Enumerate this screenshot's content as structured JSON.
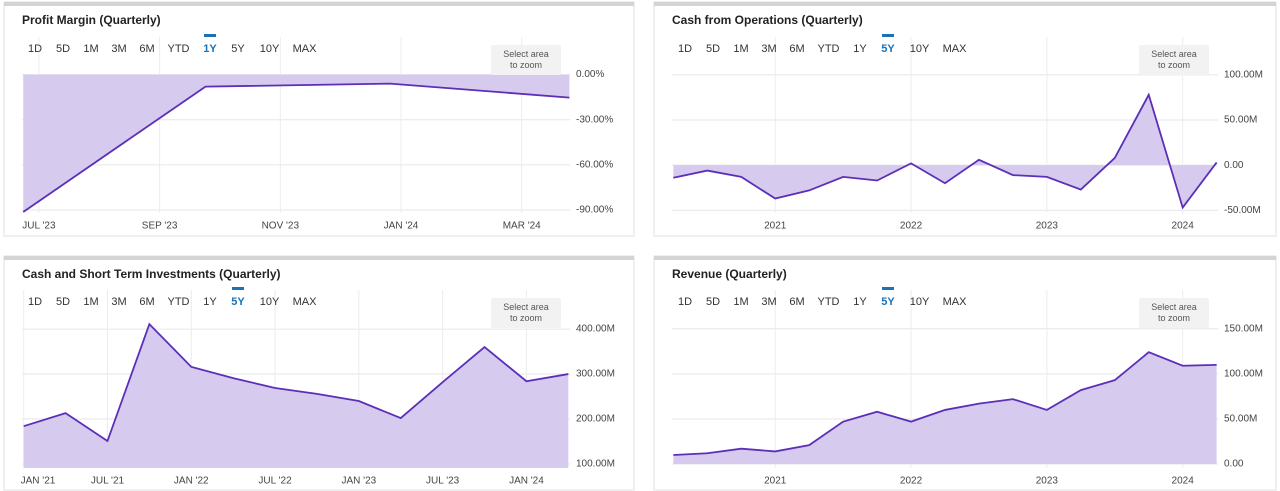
{
  "chart_data": [
    {
      "type": "area",
      "title": "Profit Margin (Quarterly)",
      "range_options": [
        "1D",
        "5D",
        "1M",
        "3M",
        "6M",
        "YTD",
        "1Y",
        "5Y",
        "10Y",
        "MAX"
      ],
      "selected_range": "1Y",
      "zoom_hint": "Select area to zoom",
      "color": "#5b2fb8",
      "fill": "#d6cbef",
      "x": [
        5.74,
        8.76,
        11.82,
        14.79
      ],
      "values": [
        -91.3,
        -8,
        -6,
        -15.3
      ],
      "xlim": [
        5.72,
        14.8
      ],
      "xticks": [
        {
          "value": 6,
          "label": "JUL '23"
        },
        {
          "value": 8,
          "label": "SEP '23"
        },
        {
          "value": 10,
          "label": "NOV '23"
        },
        {
          "value": 12,
          "label": "JAN '24"
        },
        {
          "value": 14,
          "label": "MAR '24"
        }
      ],
      "ylim": [
        -92,
        25
      ],
      "yticks": [
        {
          "value": 0,
          "label": "0.00%"
        },
        {
          "value": -30,
          "label": "-30.00%"
        },
        {
          "value": -60,
          "label": "-60.00%"
        },
        {
          "value": -90,
          "label": "-90.00%"
        }
      ],
      "grid": true
    },
    {
      "type": "area",
      "title": "Cash from Operations (Quarterly)",
      "range_options": [
        "1D",
        "5D",
        "1M",
        "3M",
        "6M",
        "YTD",
        "1Y",
        "5Y",
        "10Y",
        "MAX"
      ],
      "selected_range": "5Y",
      "zoom_hint": "Select area to zoom",
      "color": "#5b2fb8",
      "fill": "#d6cbef",
      "x": [
        2020.25,
        2020.5,
        2020.75,
        2021.0,
        2021.25,
        2021.5,
        2021.75,
        2022.0,
        2022.25,
        2022.5,
        2022.75,
        2023.0,
        2023.25,
        2023.5,
        2023.75,
        2024.0,
        2024.25
      ],
      "values": [
        -14,
        -6,
        -13,
        -37,
        -28,
        -13,
        -17,
        2,
        -20,
        6,
        -11,
        -13,
        -27,
        8,
        78,
        -47,
        3
      ],
      "xlim": [
        2020.24,
        2024.26
      ],
      "xticks": [
        2021,
        2022,
        2023,
        2024
      ],
      "ylim": [
        -53,
        142
      ],
      "yticks": [
        {
          "value": 100,
          "label": "100.00M"
        },
        {
          "value": 50,
          "label": "50.00M"
        },
        {
          "value": 0,
          "label": "0.00"
        },
        {
          "value": -50,
          "label": "-50.00M"
        }
      ],
      "grid": true
    },
    {
      "type": "area",
      "title": "Cash and Short Term Investments (Quarterly)",
      "range_options": [
        "1D",
        "5D",
        "1M",
        "3M",
        "6M",
        "YTD",
        "1Y",
        "5Y",
        "10Y",
        "MAX"
      ],
      "selected_range": "5Y",
      "zoom_hint": "Select area to zoom",
      "color": "#5b2fb8",
      "fill": "#d6cbef",
      "x": [
        2021.0,
        2021.25,
        2021.5,
        2021.75,
        2022.0,
        2022.25,
        2022.5,
        2022.75,
        2023.0,
        2023.25,
        2023.5,
        2023.75,
        2024.0,
        2024.25
      ],
      "values": [
        184,
        213,
        151,
        411,
        316,
        291,
        269,
        256,
        240,
        202,
        282,
        360,
        284,
        300
      ],
      "xlim": [
        2020.99,
        2024.26
      ],
      "xticks": [
        {
          "value": 2021,
          "label": "JAN '21"
        },
        {
          "value": 2021.5,
          "label": "JUL '21"
        },
        {
          "value": 2022,
          "label": "JAN '22"
        },
        {
          "value": 2022.5,
          "label": "JUL '22"
        },
        {
          "value": 2023,
          "label": "JAN '23"
        },
        {
          "value": 2023.5,
          "label": "JUL '23"
        },
        {
          "value": 2024,
          "label": "JAN '24"
        }
      ],
      "ylim": [
        91,
        487
      ],
      "yticks": [
        {
          "value": 400,
          "label": "400.00M"
        },
        {
          "value": 300,
          "label": "300.00M"
        },
        {
          "value": 200,
          "label": "200.00M"
        },
        {
          "value": 100,
          "label": "100.00M"
        }
      ],
      "grid": true
    },
    {
      "type": "area",
      "title": "Revenue (Quarterly)",
      "range_options": [
        "1D",
        "5D",
        "1M",
        "3M",
        "6M",
        "YTD",
        "1Y",
        "5Y",
        "10Y",
        "MAX"
      ],
      "selected_range": "5Y",
      "zoom_hint": "Select area to zoom",
      "color": "#5b2fb8",
      "fill": "#d6cbef",
      "x": [
        2020.25,
        2020.5,
        2020.75,
        2021.0,
        2021.25,
        2021.5,
        2021.75,
        2022.0,
        2022.25,
        2022.5,
        2022.75,
        2023.0,
        2023.25,
        2023.5,
        2023.75,
        2024.0,
        2024.25
      ],
      "values": [
        10,
        12,
        17,
        14,
        21,
        47,
        58,
        47,
        60,
        67,
        72,
        60,
        82,
        93,
        124,
        109,
        110
      ],
      "xlim": [
        2020.24,
        2024.26
      ],
      "xticks": [
        2021,
        2022,
        2023,
        2024
      ],
      "ylim": [
        -4.4,
        193
      ],
      "yticks": [
        {
          "value": 150,
          "label": "150.00M"
        },
        {
          "value": 100,
          "label": "100.00M"
        },
        {
          "value": 50,
          "label": "50.00M"
        },
        {
          "value": 0,
          "label": "0.00"
        }
      ],
      "grid": true
    }
  ]
}
